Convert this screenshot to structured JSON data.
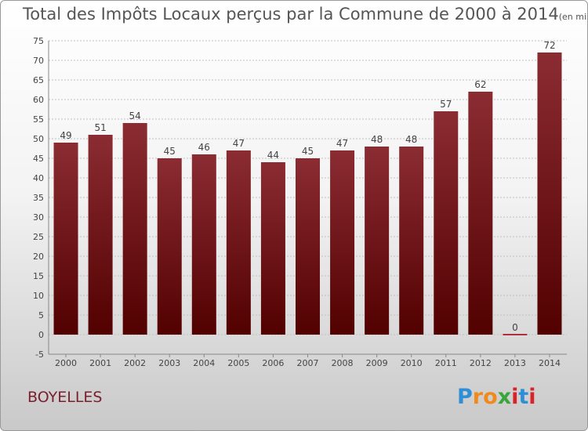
{
  "title": "Total des Impôts Locaux perçus par la Commune de 2000 à 2014",
  "unit": "(en milliers d'€)",
  "commune": "BOYELLES",
  "logo": {
    "letters": [
      "P",
      "r",
      "o",
      "x",
      "i",
      "t",
      "i"
    ],
    "colors": [
      "#2e8fd6",
      "#f08a1c",
      "#f08a1c",
      "#3aa63a",
      "#d8232a",
      "#2e8fd6",
      "#d8232a"
    ]
  },
  "colors": {
    "bar_top": "#8b2c33",
    "bar_bottom": "#520000",
    "grid": "#c0c0c0",
    "axis_text": "#444444",
    "commune": "#7a1f2b"
  },
  "chart_data": {
    "type": "bar",
    "categories": [
      "2000",
      "2001",
      "2002",
      "2003",
      "2004",
      "2005",
      "2006",
      "2007",
      "2008",
      "2009",
      "2010",
      "2011",
      "2012",
      "2013",
      "2014"
    ],
    "values": [
      49,
      51,
      54,
      45,
      46,
      47,
      44,
      45,
      47,
      48,
      48,
      57,
      62,
      0,
      72
    ],
    "ylim": [
      -5,
      75
    ],
    "yticks": [
      -5,
      0,
      5,
      10,
      15,
      20,
      25,
      30,
      35,
      40,
      45,
      50,
      55,
      60,
      65,
      70,
      75
    ],
    "grid": true,
    "legend": "none"
  }
}
